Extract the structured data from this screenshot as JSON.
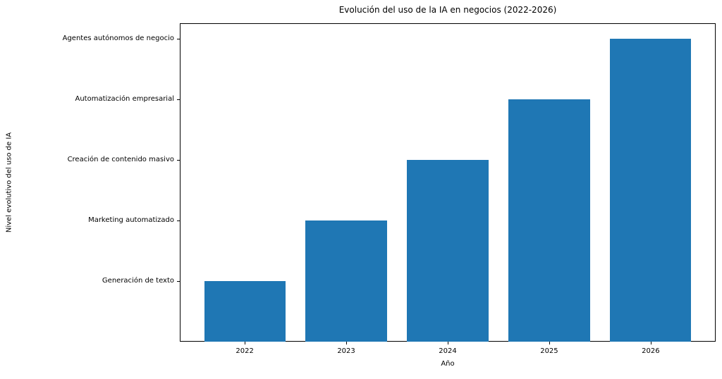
{
  "chart_data": {
    "type": "bar",
    "title": "Evolución del uso de la IA en negocios (2022-2026)",
    "xlabel": "Año",
    "ylabel": "Nivel evolutivo del uso de IA",
    "categories": [
      "2022",
      "2023",
      "2024",
      "2025",
      "2026"
    ],
    "x": [
      2022,
      2023,
      2024,
      2025,
      2026
    ],
    "values": [
      1,
      2,
      3,
      4,
      5
    ],
    "ytick_values": [
      1,
      2,
      3,
      4,
      5
    ],
    "ytick_labels": [
      "Generación de texto",
      "Marketing automatizado",
      "Creación de contenido masivo",
      "Automatización empresarial",
      "Agentes autónomos de negocio"
    ],
    "bar_color": "#1f77b4",
    "bar_width": 0.8,
    "xlim": [
      2021.36,
      2026.64
    ],
    "ylim": [
      0,
      5.25
    ],
    "grid": false,
    "legend": null
  }
}
